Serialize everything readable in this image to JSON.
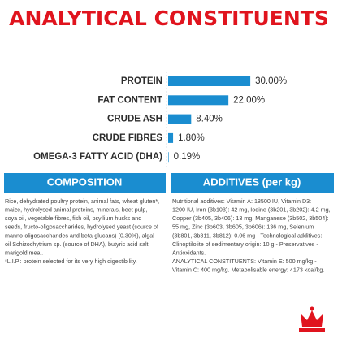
{
  "chart_data": {
    "type": "bar",
    "title": "ANALYTICAL CONSTITUENTS",
    "orientation": "horizontal",
    "color": "#1a8dd0",
    "categories": [
      "PROTEIN",
      "FAT CONTENT",
      "CRUDE ASH",
      "CRUDE FIBRES",
      "OMEGA-3 FATTY ACID (DHA)"
    ],
    "values": [
      30,
      22,
      8.4,
      1.8,
      0.19
    ],
    "value_labels": [
      "30.00%",
      "22.00%",
      "8.40%",
      "1.80%",
      "0.19%"
    ]
  },
  "composition": {
    "title": "COMPOSITION",
    "lines": [
      "Rice, dehydrated poultry protein, animal fats, wheat gluten*,",
      "maize, hydrolysed animal proteins, minerals, beet pulp,",
      "soya oil, vegetable fibres, fish oil, psyllium husks and",
      "seeds, fructo-oligosaccharides, hydrolysed yeast (source of",
      "manno-oligosaccharides and beta-glucans) (0.30%), algal",
      "oil Schizochytrium sp. (source of DHA), butyric acid salt,",
      "marigold meal.",
      "*L.I.P.: protein selected for its very high digestibility."
    ]
  },
  "additives": {
    "title": "ADDITIVES (per kg)",
    "lines": [
      "Nutritional additives: Vitamin A: 18500 IU, Vitamin D3:",
      "1200 IU, Iron (3b103): 42 mg, Iodine (3b201, 3b202): 4.2 mg,",
      "Copper (3b405, 3b406): 13 mg, Manganese (3b502, 3b504):",
      "55 mg, Zinc (3b603, 3b605, 3b606): 136 mg, Selenium",
      "(3b801, 3b811, 3b812): 0.06 mg - Technological additives:",
      "Clinoptilolite of sedimentary origin: 10 g - Preservatives -",
      "Antioxidants.",
      "ANALYTICAL CONSTITUENTS: Vitamin E: 500 mg/kg -",
      "Vitamin C: 400 mg/kg. Metabolisable energy: 4173 kcal/kg."
    ]
  }
}
